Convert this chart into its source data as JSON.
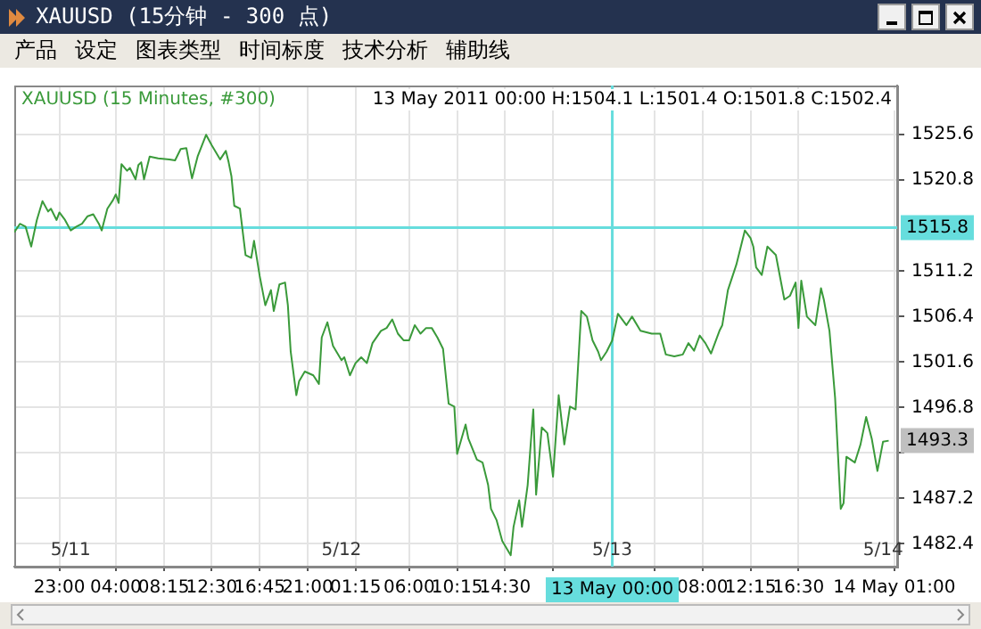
{
  "chart_data": {
    "type": "line",
    "title": "XAUUSD (15分钟 - 300 点)",
    "subtitle": "XAUUSD (15 Minutes, #300)",
    "annotations": [
      "产品",
      "设定",
      "图表类型",
      "时间标度",
      "技术分析",
      "辅助线",
      "13 May 2011 00:00 H:1504.1 L:1501.4 O:1501.8 C:1502.4",
      {
        "text": "1493.3",
        "x": "2011-05-14T00:30",
        "y": 1493.3
      }
    ],
    "xlim": [
      "2011-05-10T19:00",
      "2011-05-14T01:15"
    ],
    "xticks": [
      {
        "value": "2011-05-10T23:00",
        "label": "23:00"
      },
      {
        "value": "2011-05-11T04:00",
        "label": "04:00"
      },
      {
        "value": "2011-05-11T08:15",
        "label": "08:15"
      },
      {
        "value": "2011-05-11T12:30",
        "label": "12:30"
      },
      {
        "value": "2011-05-11T16:45",
        "label": "16:45"
      },
      {
        "value": "2011-05-11T21:00",
        "label": "21:00"
      },
      {
        "value": "2011-05-12T01:15",
        "label": "01:15"
      },
      {
        "value": "2011-05-12T06:00",
        "label": "06:00"
      },
      {
        "value": "2011-05-12T10:15",
        "label": "10:15"
      },
      {
        "value": "2011-05-12T14:30",
        "label": "14:30"
      },
      {
        "value": "2011-05-12T18:45",
        "label": null
      },
      {
        "value": "2011-05-13T03:45",
        "label": null
      },
      {
        "value": "2011-05-13T08:00",
        "label": "08:00"
      },
      {
        "value": "2011-05-13T12:15",
        "label": "12:15"
      },
      {
        "value": "2011-05-13T16:30",
        "label": "16:30"
      },
      {
        "value": "2011-05-14T01:00",
        "label": "14 May 01:00"
      }
    ],
    "x2lim": [
      "2011-05-10T19:00",
      "2011-05-14T01:15"
    ],
    "x2ticks": [
      {
        "value": "2011-05-11",
        "label": "5/11"
      },
      {
        "value": "2011-05-12",
        "label": "5/12"
      },
      {
        "value": "2011-05-13",
        "label": "5/13"
      },
      {
        "value": "2011-05-14",
        "label": "5/14"
      }
    ],
    "ylim": [
      1480,
      1530.8
    ],
    "yticks": [
      1482.4,
      1487.2,
      {
        "value": 1492,
        "label": null
      },
      1496.8,
      1501.6,
      1506.4,
      1511.2,
      1520.8,
      1525.6
    ],
    "grid": true,
    "marker": "none",
    "ref_lines": [
      {
        "axis": "y",
        "value": 1515.8,
        "label": "1515.8",
        "color": "#66dddd"
      },
      {
        "axis": "x",
        "value": "2011-05-13T00:00",
        "label": "13 May 00:00",
        "color": "#66dddd"
      }
    ],
    "series": [
      {
        "color": "#3a9a3a",
        "x": [
          "2011-05-10T19:00",
          "2011-05-10T19:30",
          "2011-05-10T20:00",
          "2011-05-10T20:30",
          "2011-05-10T21:00",
          "2011-05-10T21:30",
          "2011-05-10T22:00",
          "2011-05-10T22:15",
          "2011-05-10T22:45",
          "2011-05-10T23:00",
          "2011-05-10T23:30",
          "2011-05-11T00:00",
          "2011-05-11T00:30",
          "2011-05-11T01:00",
          "2011-05-11T01:30",
          "2011-05-11T02:00",
          "2011-05-11T02:30",
          "2011-05-11T02:45",
          "2011-05-11T03:15",
          "2011-05-11T03:45",
          "2011-05-11T04:00",
          "2011-05-11T04:15",
          "2011-05-11T04:30",
          "2011-05-11T05:00",
          "2011-05-11T05:15",
          "2011-05-11T05:45",
          "2011-05-11T06:00",
          "2011-05-11T06:15",
          "2011-05-11T06:30",
          "2011-05-11T07:00",
          "2011-05-11T07:45",
          "2011-05-11T08:45",
          "2011-05-11T09:15",
          "2011-05-11T09:45",
          "2011-05-11T10:15",
          "2011-05-11T10:45",
          "2011-05-11T11:15",
          "2011-05-11T12:00",
          "2011-05-11T12:30",
          "2011-05-11T13:15",
          "2011-05-11T13:45",
          "2011-05-11T14:00",
          "2011-05-11T14:15",
          "2011-05-11T14:30",
          "2011-05-11T15:00",
          "2011-05-11T15:30",
          "2011-05-11T16:00",
          "2011-05-11T16:15",
          "2011-05-11T16:45",
          "2011-05-11T17:15",
          "2011-05-11T17:45",
          "2011-05-11T18:00",
          "2011-05-11T18:30",
          "2011-05-11T19:00",
          "2011-05-11T19:15",
          "2011-05-11T19:30",
          "2011-05-11T20:00",
          "2011-05-11T20:15",
          "2011-05-11T20:45",
          "2011-05-11T21:30",
          "2011-05-11T22:00",
          "2011-05-11T22:15",
          "2011-05-11T22:45",
          "2011-05-11T23:15",
          "2011-05-12T00:00",
          "2011-05-12T00:15",
          "2011-05-12T00:45",
          "2011-05-12T01:15",
          "2011-05-12T01:45",
          "2011-05-12T02:15",
          "2011-05-12T02:45",
          "2011-05-12T03:30",
          "2011-05-12T04:00",
          "2011-05-12T04:30",
          "2011-05-12T05:00",
          "2011-05-12T05:30",
          "2011-05-12T06:00",
          "2011-05-12T06:30",
          "2011-05-12T07:00",
          "2011-05-12T07:30",
          "2011-05-12T08:00",
          "2011-05-12T08:30",
          "2011-05-12T09:00",
          "2011-05-12T09:30",
          "2011-05-12T10:00",
          "2011-05-12T10:15",
          "2011-05-12T11:00",
          "2011-05-12T11:15",
          "2011-05-12T12:00",
          "2011-05-12T12:30",
          "2011-05-12T13:00",
          "2011-05-12T13:15",
          "2011-05-12T13:45",
          "2011-05-12T14:15",
          "2011-05-12T15:00",
          "2011-05-12T15:15",
          "2011-05-12T15:45",
          "2011-05-12T16:00",
          "2011-05-12T16:30",
          "2011-05-12T17:00",
          "2011-05-12T17:15",
          "2011-05-12T17:45",
          "2011-05-12T18:15",
          "2011-05-12T18:45",
          "2011-05-12T19:15",
          "2011-05-12T19:45",
          "2011-05-12T20:15",
          "2011-05-12T20:45",
          "2011-05-12T21:15",
          "2011-05-12T21:45",
          "2011-05-12T22:15",
          "2011-05-12T22:45",
          "2011-05-12T23:00",
          "2011-05-12T23:30",
          "2011-05-13T00:00",
          "2011-05-13T00:30",
          "2011-05-13T01:15",
          "2011-05-13T01:45",
          "2011-05-13T02:30",
          "2011-05-13T03:30",
          "2011-05-13T04:15",
          "2011-05-13T04:45",
          "2011-05-13T05:30",
          "2011-05-13T06:15",
          "2011-05-13T06:45",
          "2011-05-13T07:15",
          "2011-05-13T07:45",
          "2011-05-13T08:15",
          "2011-05-13T08:45",
          "2011-05-13T09:30",
          "2011-05-13T09:45",
          "2011-05-13T10:15",
          "2011-05-13T11:00",
          "2011-05-13T11:45",
          "2011-05-13T12:15",
          "2011-05-13T12:30",
          "2011-05-13T12:45",
          "2011-05-13T13:15",
          "2011-05-13T13:45",
          "2011-05-13T14:30",
          "2011-05-13T15:15",
          "2011-05-13T15:45",
          "2011-05-13T16:15",
          "2011-05-13T16:30",
          "2011-05-13T16:45",
          "2011-05-13T17:15",
          "2011-05-13T18:00",
          "2011-05-13T18:30",
          "2011-05-13T18:45",
          "2011-05-13T19:15",
          "2011-05-13T19:45",
          "2011-05-13T20:15",
          "2011-05-13T20:30",
          "2011-05-13T20:45",
          "2011-05-13T21:30",
          "2011-05-13T22:00",
          "2011-05-13T22:30",
          "2011-05-13T23:00",
          "2011-05-13T23:30",
          "2011-05-14T00:00",
          "2011-05-14T00:30"
        ],
        "values": [
          1515.3,
          1516.2,
          1515.9,
          1513.8,
          1516.6,
          1518.6,
          1517.5,
          1517.8,
          1516.6,
          1517.4,
          1516.6,
          1515.5,
          1515.9,
          1516.2,
          1517.0,
          1517.2,
          1516.2,
          1515.5,
          1517.8,
          1518.7,
          1519.3,
          1518.4,
          1522.5,
          1521.8,
          1522.1,
          1520.9,
          1522.4,
          1522.7,
          1520.9,
          1523.3,
          1523.1,
          1523.0,
          1522.9,
          1524.1,
          1524.2,
          1521.0,
          1523.3,
          1525.6,
          1524.5,
          1523.0,
          1523.9,
          1522.7,
          1521.2,
          1518.1,
          1517.8,
          1512.9,
          1512.6,
          1514.4,
          1510.7,
          1507.6,
          1509.2,
          1507.0,
          1509.8,
          1510.0,
          1507.6,
          1502.7,
          1498.1,
          1499.6,
          1500.6,
          1500.2,
          1499.3,
          1504.2,
          1505.8,
          1503.3,
          1501.8,
          1502.1,
          1500.2,
          1501.5,
          1502.1,
          1501.5,
          1503.6,
          1504.9,
          1505.2,
          1506.1,
          1504.6,
          1503.9,
          1503.9,
          1505.5,
          1504.6,
          1505.2,
          1505.2,
          1504.2,
          1503.0,
          1497.2,
          1496.9,
          1491.9,
          1495.0,
          1493.5,
          1491.3,
          1491.0,
          1488.6,
          1486.1,
          1484.9,
          1482.7,
          1481.2,
          1484.2,
          1487.0,
          1484.2,
          1488.6,
          1496.6,
          1487.6,
          1494.7,
          1494.1,
          1489.5,
          1498.1,
          1492.9,
          1496.9,
          1496.6,
          1507.0,
          1506.4,
          1503.9,
          1502.7,
          1501.8,
          1502.7,
          1503.9,
          1506.7,
          1505.5,
          1506.4,
          1504.9,
          1504.6,
          1504.6,
          1502.4,
          1502.2,
          1502.4,
          1503.6,
          1502.8,
          1504.4,
          1503.6,
          1502.5,
          1504.9,
          1505.5,
          1509.2,
          1511.9,
          1515.5,
          1514.7,
          1513.8,
          1511.6,
          1510.8,
          1513.8,
          1512.9,
          1508.2,
          1508.6,
          1510.0,
          1505.2,
          1510.2,
          1506.4,
          1505.5,
          1509.4,
          1508.2,
          1504.9,
          1497.8,
          1486.1,
          1486.7,
          1491.6,
          1491.0,
          1492.9,
          1495.8,
          1493.5,
          1490.1,
          1493.2,
          1493.3
        ]
      }
    ]
  }
}
